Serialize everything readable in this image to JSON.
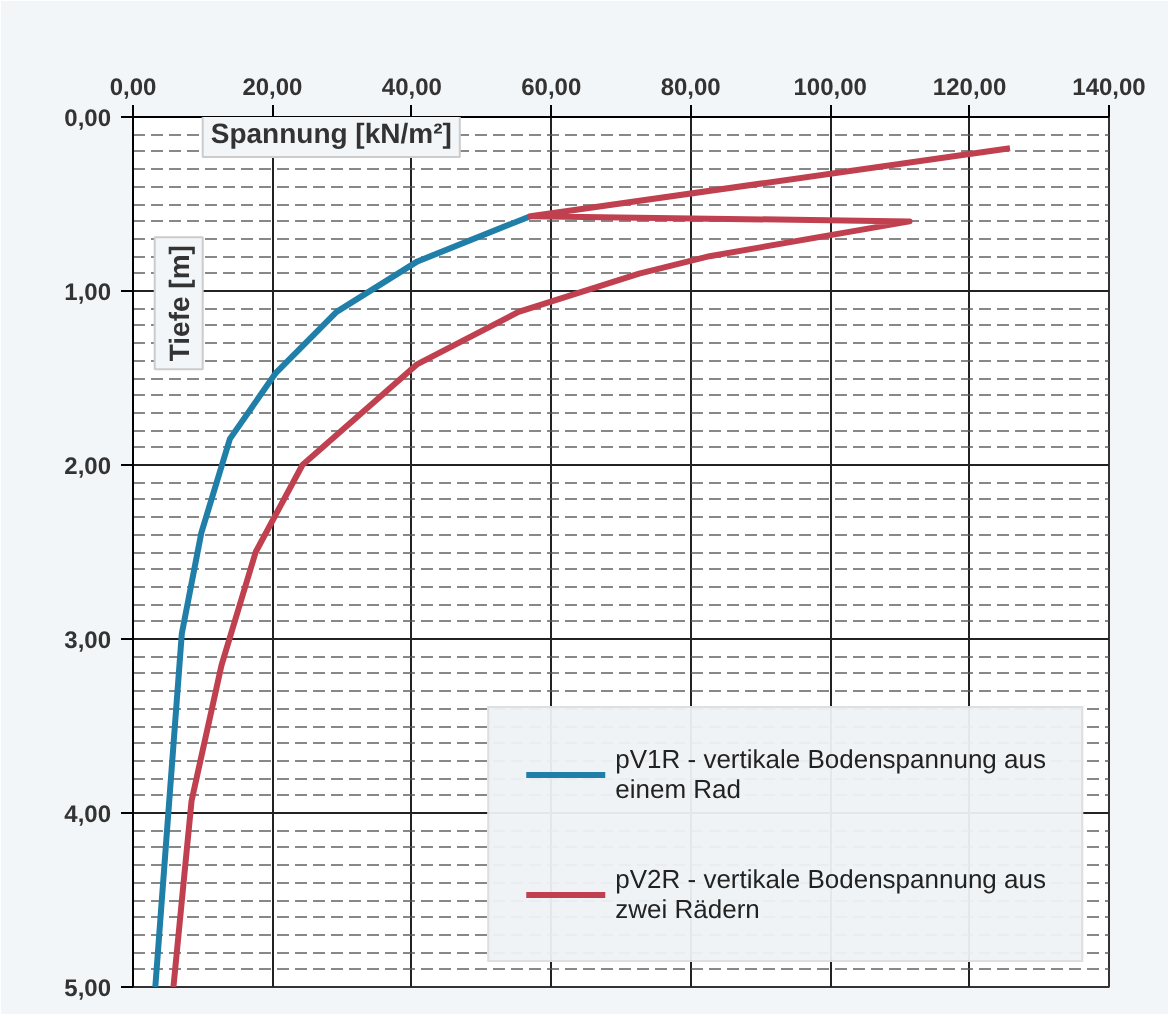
{
  "chart_data": {
    "type": "line",
    "xlabel": "Spannung [kN/m²]",
    "ylabel": "Tiefe [m]",
    "xlim": [
      0,
      140
    ],
    "ylim": [
      5,
      0
    ],
    "xticks": [
      {
        "value": 0,
        "label": "0,00"
      },
      {
        "value": 20,
        "label": "20,00"
      },
      {
        "value": 40,
        "label": "40,00"
      },
      {
        "value": 60,
        "label": "60,00"
      },
      {
        "value": 80,
        "label": "80,00"
      },
      {
        "value": 100,
        "label": "100,00"
      },
      {
        "value": 120,
        "label": "120,00"
      },
      {
        "value": 140,
        "label": "140,00"
      }
    ],
    "yticks": [
      {
        "value": 0,
        "label": "0,00"
      },
      {
        "value": 1,
        "label": "1,00"
      },
      {
        "value": 2,
        "label": "2,00"
      },
      {
        "value": 3,
        "label": "3,00"
      },
      {
        "value": 4,
        "label": "4,00"
      },
      {
        "value": 5,
        "label": "5,00"
      }
    ],
    "grid": true,
    "legend": "bottom right",
    "marker": "none",
    "line_style": "solid",
    "series": [
      {
        "name": "pV1R - vertikale Bodenspannung aus einem Rad",
        "color": "#1f7fa8",
        "x": [
          57,
          40.8,
          29.2,
          20.5,
          13.9,
          9.8,
          7.0,
          5.2,
          3.2
        ],
        "values": [
          0.57,
          0.83,
          1.12,
          1.47,
          1.85,
          2.39,
          2.97,
          3.93,
          5.0
        ]
      },
      {
        "name": "pV2R - vertikale Bodenspannung aus zwei Rädern",
        "color": "#c0404f",
        "x": [
          125.8,
          57,
          111.4,
          82.7,
          72.6,
          55.3,
          40.8,
          24.3,
          17.6,
          12.7,
          8.4,
          5.8
        ],
        "values": [
          0.18,
          0.57,
          0.6,
          0.8,
          0.9,
          1.12,
          1.42,
          2.0,
          2.5,
          3.15,
          3.93,
          5.0
        ]
      }
    ]
  }
}
